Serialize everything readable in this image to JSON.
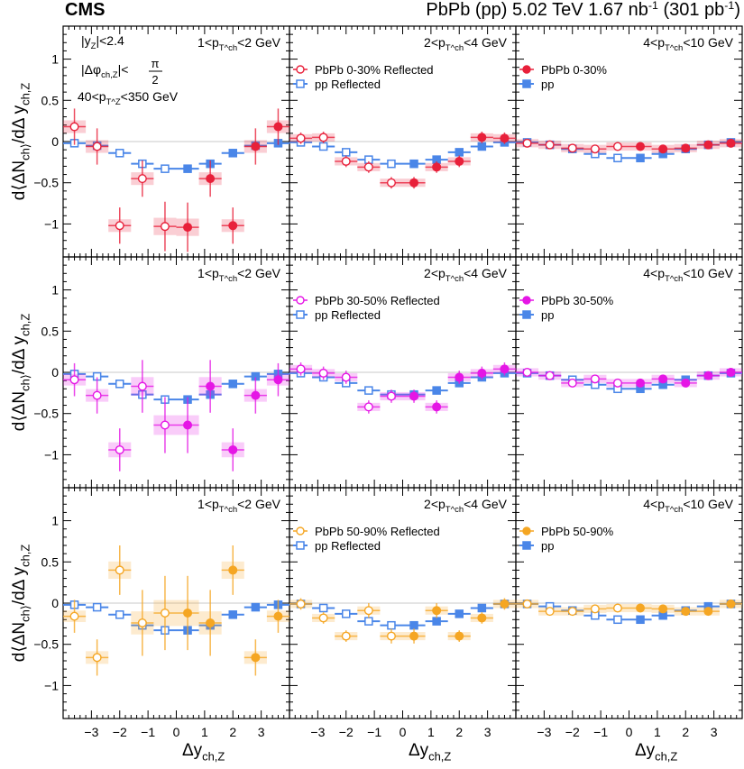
{
  "header": {
    "experiment": "CMS",
    "energy_text": "PbPb (pp) 5.02 TeV 1.67 nb",
    "sup1": "-1",
    "lumi_pp": " (301 pb",
    "sup2": "-1",
    "close": ")"
  },
  "axes": {
    "y_label": "d⟨ΔN_ch⟩/dΔ y_ch,Z",
    "x_label": "Δy_ch,Z",
    "x_ticks": [
      "−3",
      "−2",
      "−1",
      "0",
      "1",
      "2",
      "3"
    ],
    "y_ticks": [
      "−1",
      "−0.5",
      "0",
      "0.5",
      "1"
    ]
  },
  "selection": {
    "line1": "|y_Z|<2.4",
    "line2": "|Δφ_ch,Z|<π/2",
    "line3": "40<p_T^Z<350 GeV"
  },
  "column_titles": [
    "1<p_T^ch<2 GeV",
    "2<p_T^ch<4 GeV",
    "4<p_T^ch<10 GeV"
  ],
  "colors": {
    "pp": "#4a86e8",
    "row0": "#e8203a",
    "row1": "#e516e5",
    "row2": "#f5a623",
    "guide": "#c8c8c8"
  },
  "legends": [
    {
      "refl": "PbPb 0-30% Reflected",
      "pp_refl": "pp Reflected",
      "main": "PbPb 0-30%",
      "pp": "pp"
    },
    {
      "refl": "PbPb 30-50% Reflected",
      "pp_refl": "pp Reflected",
      "main": "PbPb 30-50%",
      "pp": "pp"
    },
    {
      "refl": "PbPb 50-90% Reflected",
      "pp_refl": "pp Reflected",
      "main": "PbPb 50-90%",
      "pp": "pp"
    }
  ],
  "chart_data": {
    "type": "scatter",
    "x": [
      -3.6,
      -2.8,
      -2.0,
      -1.2,
      -0.4,
      0.4,
      1.2,
      2.0,
      2.8,
      3.6
    ],
    "xlim": [
      -4.0,
      4.0
    ],
    "ylim": [
      -1.4,
      1.4
    ],
    "grid": false,
    "legend_position": "top-left",
    "note": "Left half (x<0) markers are open (reflected), right half filled.",
    "panels": [
      {
        "row": 0,
        "col": 0,
        "pbpb": [
          0.18,
          -0.06,
          -1.02,
          -0.45,
          -1.03,
          -1.04,
          -0.45,
          -1.02,
          -0.06,
          0.18
        ],
        "pbpb_err": [
          0.22,
          0.22,
          0.22,
          0.22,
          0.3,
          0.3,
          0.22,
          0.22,
          0.22,
          0.22
        ],
        "pp": [
          -0.02,
          -0.05,
          -0.14,
          -0.27,
          -0.33,
          -0.33,
          -0.27,
          -0.14,
          -0.05,
          -0.02
        ]
      },
      {
        "row": 0,
        "col": 1,
        "pbpb": [
          0.04,
          0.05,
          -0.24,
          -0.31,
          -0.5,
          -0.5,
          -0.31,
          -0.24,
          0.05,
          0.04
        ],
        "pbpb_err": [
          0.07,
          0.07,
          0.07,
          0.07,
          0.07,
          0.07,
          0.07,
          0.07,
          0.07,
          0.07
        ],
        "pp": [
          -0.01,
          -0.06,
          -0.13,
          -0.22,
          -0.27,
          -0.27,
          -0.22,
          -0.13,
          -0.06,
          -0.01
        ]
      },
      {
        "row": 0,
        "col": 2,
        "pbpb": [
          -0.02,
          -0.04,
          -0.08,
          -0.09,
          -0.06,
          -0.06,
          -0.09,
          -0.08,
          -0.04,
          -0.02
        ],
        "pbpb_err": [
          0.03,
          0.03,
          0.03,
          0.03,
          0.03,
          0.03,
          0.03,
          0.03,
          0.03,
          0.03
        ],
        "pp": [
          -0.01,
          -0.04,
          -0.09,
          -0.15,
          -0.2,
          -0.2,
          -0.15,
          -0.09,
          -0.04,
          -0.01
        ]
      },
      {
        "row": 1,
        "col": 0,
        "pbpb": [
          -0.09,
          -0.28,
          -0.94,
          -0.17,
          -0.64,
          -0.64,
          -0.17,
          -0.94,
          -0.28,
          -0.09
        ],
        "pbpb_err": [
          0.2,
          0.22,
          0.26,
          0.32,
          0.34,
          0.34,
          0.32,
          0.26,
          0.22,
          0.2
        ],
        "pp": [
          -0.02,
          -0.05,
          -0.14,
          -0.27,
          -0.33,
          -0.33,
          -0.27,
          -0.14,
          -0.05,
          -0.02
        ]
      },
      {
        "row": 1,
        "col": 1,
        "pbpb": [
          0.04,
          -0.01,
          -0.06,
          -0.42,
          -0.29,
          -0.29,
          -0.42,
          -0.06,
          -0.01,
          0.04
        ],
        "pbpb_err": [
          0.08,
          0.08,
          0.08,
          0.08,
          0.08,
          0.08,
          0.08,
          0.08,
          0.08,
          0.08
        ],
        "pp": [
          -0.01,
          -0.06,
          -0.13,
          -0.22,
          -0.27,
          -0.27,
          -0.22,
          -0.13,
          -0.06,
          -0.01
        ]
      },
      {
        "row": 1,
        "col": 2,
        "pbpb": [
          0.0,
          -0.04,
          -0.13,
          -0.08,
          -0.13,
          -0.13,
          -0.08,
          -0.13,
          -0.04,
          0.0
        ],
        "pbpb_err": [
          0.03,
          0.03,
          0.03,
          0.03,
          0.03,
          0.03,
          0.03,
          0.03,
          0.03,
          0.03
        ],
        "pp": [
          -0.01,
          -0.04,
          -0.09,
          -0.15,
          -0.2,
          -0.2,
          -0.15,
          -0.09,
          -0.04,
          -0.01
        ]
      },
      {
        "row": 2,
        "col": 0,
        "pbpb": [
          -0.16,
          -0.66,
          0.4,
          -0.24,
          -0.12,
          -0.12,
          -0.24,
          0.4,
          -0.66,
          -0.16
        ],
        "pbpb_err": [
          0.2,
          0.22,
          0.3,
          0.4,
          0.45,
          0.45,
          0.4,
          0.3,
          0.22,
          0.2
        ],
        "pp": [
          -0.02,
          -0.05,
          -0.14,
          -0.27,
          -0.33,
          -0.33,
          -0.27,
          -0.14,
          -0.05,
          -0.02
        ]
      },
      {
        "row": 2,
        "col": 1,
        "pbpb": [
          -0.01,
          -0.18,
          -0.4,
          -0.09,
          -0.4,
          -0.4,
          -0.09,
          -0.4,
          -0.18,
          -0.01
        ],
        "pbpb_err": [
          0.07,
          0.07,
          0.07,
          0.09,
          0.09,
          0.09,
          0.09,
          0.07,
          0.07,
          0.07
        ],
        "pp": [
          -0.01,
          -0.06,
          -0.13,
          -0.22,
          -0.27,
          -0.27,
          -0.22,
          -0.13,
          -0.06,
          -0.01
        ]
      },
      {
        "row": 2,
        "col": 2,
        "pbpb": [
          -0.01,
          -0.1,
          -0.1,
          -0.07,
          -0.06,
          -0.06,
          -0.07,
          -0.1,
          -0.1,
          -0.01
        ],
        "pbpb_err": [
          0.03,
          0.03,
          0.03,
          0.03,
          0.03,
          0.03,
          0.03,
          0.03,
          0.03,
          0.03
        ],
        "pp": [
          -0.01,
          -0.04,
          -0.09,
          -0.15,
          -0.2,
          -0.2,
          -0.15,
          -0.09,
          -0.04,
          -0.01
        ]
      }
    ]
  }
}
